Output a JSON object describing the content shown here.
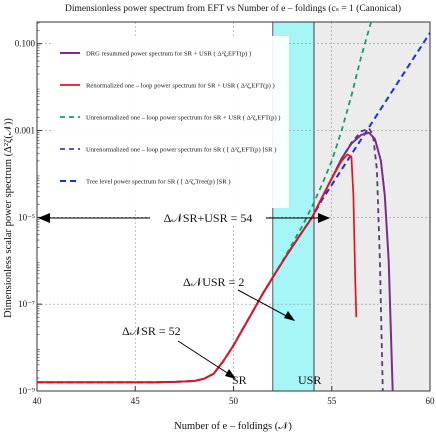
{
  "chart_data": {
    "type": "line",
    "title": "Dimensionless power spectrum from EFT vs Number of e – foldings (cₛ = 1 (Canonical)",
    "xlabel": "Number of e – foldings  (𝒩)",
    "ylabel": "Dimensionless scalar power spectrum  (Δ²ζ(𝒩))",
    "xlim": [
      40,
      60
    ],
    "ylim_log10": [
      -9,
      -0.5
    ],
    "y_scale": "log",
    "grid": true,
    "x_ticks": [
      {
        "value": 40,
        "label": "40"
      },
      {
        "value": 45,
        "label": "45"
      },
      {
        "value": 50,
        "label": "50"
      },
      {
        "value": 55,
        "label": "55"
      },
      {
        "value": 60,
        "label": "60"
      }
    ],
    "y_ticks": [
      {
        "log10": -1,
        "label": "0.100"
      },
      {
        "log10": -3,
        "label": "0.001"
      },
      {
        "log10": -5,
        "label": "10⁻⁵"
      },
      {
        "log10": -7,
        "label": "10⁻⁷"
      },
      {
        "log10": -9,
        "label": "10⁻⁹"
      }
    ],
    "regions": [
      {
        "name": "USR",
        "x": [
          52,
          54.1
        ],
        "color": "#a6f6f8",
        "label": "USR"
      },
      {
        "name": "SR2",
        "x": [
          54.1,
          60
        ],
        "color": "#ececec",
        "label": ""
      }
    ],
    "series": [
      {
        "name": "DRG resummed power spectrum for SR + USR ( Δ²ζ,EFT(p) )",
        "color": "#7b2c8e",
        "dash": "solid",
        "width": 2.0,
        "x": [
          40,
          44,
          46,
          47,
          48,
          48.5,
          49,
          49.5,
          50,
          50.5,
          51,
          51.5,
          52,
          52.5,
          53,
          53.5,
          54,
          54.5,
          55,
          55.5,
          56,
          56.5,
          56.9,
          57.2,
          57.5,
          57.7,
          57.9,
          58.0,
          58.1
        ],
        "log10": [
          -8.8,
          -8.8,
          -8.8,
          -8.79,
          -8.77,
          -8.72,
          -8.6,
          -8.3,
          -7.95,
          -7.55,
          -7.15,
          -6.75,
          -6.38,
          -6.02,
          -5.67,
          -5.33,
          -5.0,
          -4.55,
          -4.1,
          -3.65,
          -3.3,
          -3.1,
          -3.05,
          -3.2,
          -3.7,
          -4.5,
          -6.0,
          -7.5,
          -9.0
        ]
      },
      {
        "name": "Renormalized one – loop power spectrum for SR + USR ( Δ²ζ,EFT(p) )",
        "color": "#e3141c",
        "dash": "solid",
        "width": 1.7,
        "x": [
          40,
          44,
          46,
          47,
          48,
          48.5,
          49,
          49.5,
          50,
          50.5,
          51,
          51.5,
          52,
          52.5,
          53,
          53.5,
          54,
          54.5,
          55,
          55.5,
          55.8,
          56.0,
          56.1,
          56.2,
          56.25
        ],
        "log10": [
          -8.8,
          -8.8,
          -8.8,
          -8.79,
          -8.77,
          -8.72,
          -8.6,
          -8.3,
          -7.95,
          -7.55,
          -7.15,
          -6.75,
          -6.38,
          -6.02,
          -5.67,
          -5.33,
          -5.0,
          -4.55,
          -4.1,
          -3.7,
          -3.55,
          -3.6,
          -4.5,
          -6.5,
          -7.3
        ]
      },
      {
        "name": "Unrenormalized one – loop power spectrum for SR + USR ( Δ²ζ,EFT(p) )",
        "color": "#1a9a6e",
        "dash": "5,4",
        "width": 1.8,
        "x": [
          52,
          52.5,
          53,
          53.5,
          54,
          54.5,
          55,
          55.5,
          56,
          56.5,
          57.0
        ],
        "log10": [
          -6.38,
          -6.0,
          -5.6,
          -5.2,
          -4.75,
          -4.25,
          -3.7,
          -3.0,
          -2.2,
          -1.3,
          -0.5
        ]
      },
      {
        "name": "Unrenormalized one – loop power spectrum for SR ( [ Δ²ζ,EFT(p) ]SR )",
        "color": "#5a3a7a",
        "dash": "5,4",
        "width": 1.8,
        "x": [
          54,
          54.5,
          55,
          55.5,
          56,
          56.5,
          56.9,
          57.1,
          57.3,
          57.45,
          57.6
        ],
        "log10": [
          -5.0,
          -4.55,
          -4.1,
          -3.65,
          -3.28,
          -3.02,
          -2.95,
          -3.1,
          -3.9,
          -6.0,
          -9.0
        ]
      },
      {
        "name": "Tree level power spectrum for SR ( [ Δ²ζ,Tree(p) ]SR )",
        "color": "#1f2fd8",
        "dash": "6,4",
        "width": 2.0,
        "x": [
          40,
          44,
          46,
          47,
          48,
          48.5,
          49,
          49.5,
          50,
          50.5,
          51,
          51.5,
          52,
          52.5,
          53,
          53.5,
          54,
          54.5,
          55,
          56,
          57,
          58,
          59,
          60
        ],
        "log10": [
          -8.8,
          -8.8,
          -8.8,
          -8.79,
          -8.77,
          -8.72,
          -8.6,
          -8.3,
          -7.95,
          -7.55,
          -7.15,
          -6.75,
          -6.38,
          -6.02,
          -5.67,
          -5.33,
          -5.0,
          -4.6,
          -4.25,
          -3.55,
          -2.85,
          -2.15,
          -1.45,
          -0.75
        ]
      }
    ],
    "annotations": [
      {
        "id": "sr-usr",
        "text": "Δ𝒩SR+USR = 54"
      },
      {
        "id": "usr",
        "text": "Δ𝒩USR = 2"
      },
      {
        "id": "sr",
        "text": "Δ𝒩SR = 52"
      },
      {
        "id": "sr-label",
        "text": "SR"
      },
      {
        "id": "usr-label",
        "text": "USR"
      }
    ]
  }
}
